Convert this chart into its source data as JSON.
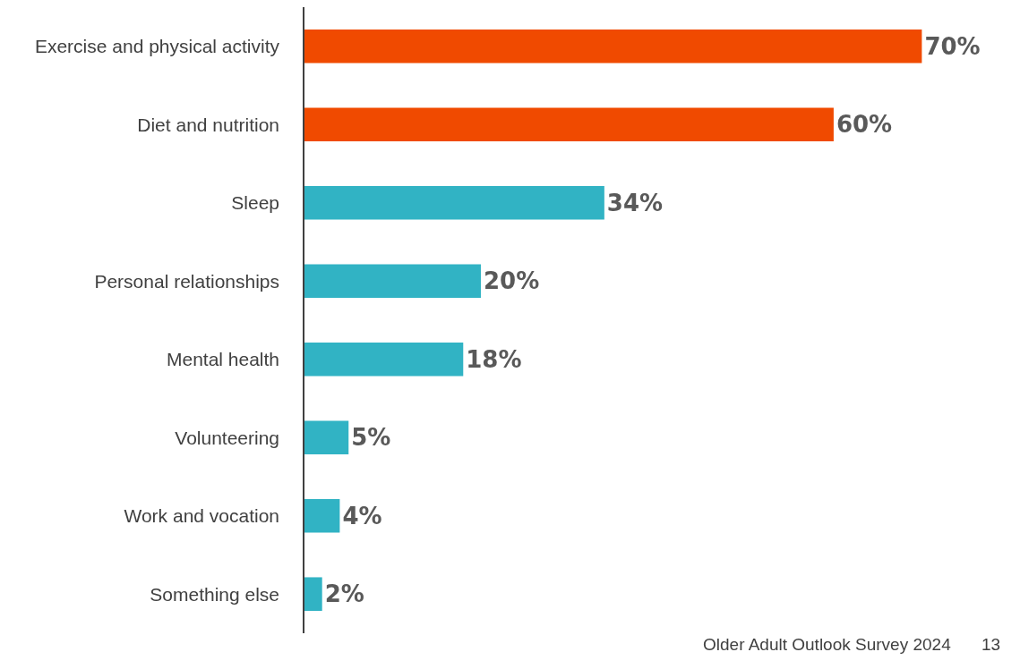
{
  "chart_data": {
    "type": "bar",
    "orientation": "horizontal",
    "categories": [
      "Exercise and physical activity",
      "Diet and nutrition",
      "Sleep",
      "Personal relationships",
      "Mental health",
      "Volunteering",
      "Work and vocation",
      "Something else"
    ],
    "values": [
      70,
      60,
      34,
      20,
      18,
      5,
      4,
      2
    ],
    "colors": [
      "#f04a00",
      "#f04a00",
      "#31b3c4",
      "#31b3c4",
      "#31b3c4",
      "#31b3c4",
      "#31b3c4",
      "#31b3c4"
    ],
    "value_labels": [
      "70%",
      "60%",
      "34%",
      "20%",
      "18%",
      "5%",
      "4%",
      "2%"
    ],
    "annotations": [
      "Older Adult Outlook Survey 2024",
      "13"
    ]
  }
}
